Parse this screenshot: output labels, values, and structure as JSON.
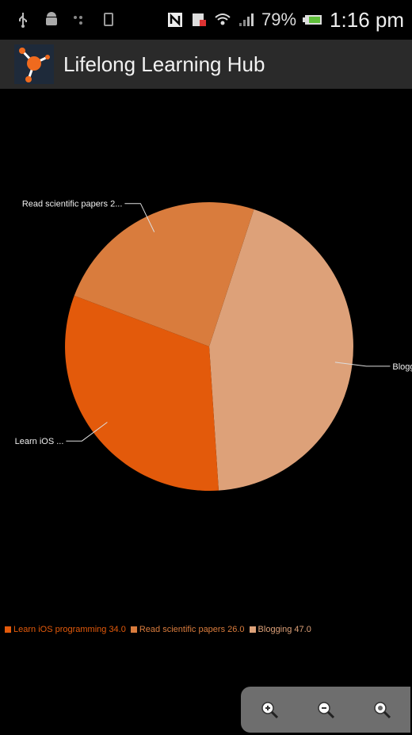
{
  "status_bar": {
    "battery": "79%",
    "time": "1:16 pm",
    "icons": [
      "usb-icon",
      "android-debug-icon",
      "signal-dots-icon",
      "sd-card-icon",
      "nfc-icon",
      "download-icon",
      "wifi-icon",
      "cell-signal-icon",
      "battery-icon"
    ]
  },
  "app": {
    "title": "Lifelong Learning Hub",
    "icon": "app-logo-icon"
  },
  "chart_data": {
    "type": "pie",
    "slices": [
      {
        "name": "Learn iOS programming",
        "value": 34.0,
        "label": "Learn iOS ...",
        "color": "#e35a0b"
      },
      {
        "name": "Read scientific papers",
        "value": 26.0,
        "label": "Read scientific papers 2...",
        "color": "#d97c3d"
      },
      {
        "name": "Blogging",
        "value": 47.0,
        "label": "Bloggi...",
        "color": "#dda179"
      }
    ],
    "legend": [
      {
        "text": "Learn iOS programming 34.0",
        "color": "#e35a0b"
      },
      {
        "text": "Read scientific papers 26.0",
        "color": "#d97c3d"
      },
      {
        "text": "Blogging 47.0",
        "color": "#dda179"
      }
    ],
    "legend_position": "bottom"
  },
  "zoom": {
    "buttons": [
      "zoom-in-icon",
      "zoom-out-icon",
      "zoom-reset-icon"
    ]
  }
}
